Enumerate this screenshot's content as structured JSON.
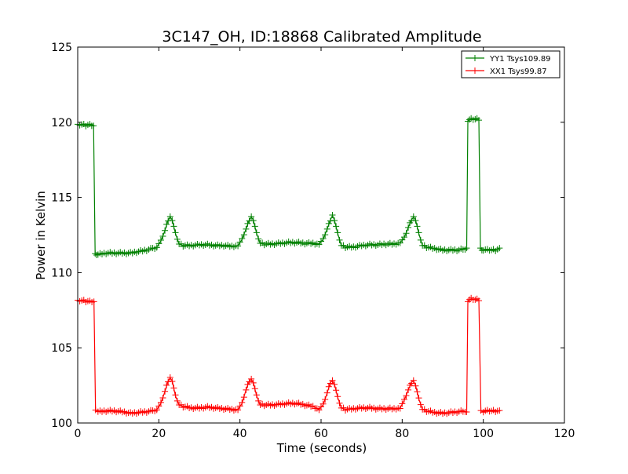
{
  "chart_data": {
    "type": "line",
    "title": "3C147_OH, ID:18868 Calibrated Amplitude",
    "xlabel": "Time (seconds)",
    "ylabel": "Power in Kelvin",
    "xlim": [
      0,
      120
    ],
    "ylim": [
      100,
      125
    ],
    "xticks": [
      0,
      20,
      40,
      60,
      80,
      100,
      120
    ],
    "yticks": [
      100,
      105,
      110,
      115,
      120,
      125
    ],
    "legend_position": "top-right",
    "marker": "+",
    "series": [
      {
        "name": "YY1 Tsys109.89",
        "color": "#008000",
        "x": [
          0,
          1,
          2,
          3,
          3.9,
          4.3,
          5,
          7,
          9,
          11,
          13,
          15,
          17,
          18.5,
          19.5,
          20.5,
          21.5,
          22.3,
          22.8,
          23.3,
          24.1,
          25,
          26,
          28,
          30,
          32,
          34,
          36,
          38,
          39.5,
          40.5,
          41.5,
          42.3,
          42.8,
          43.3,
          44.1,
          45,
          46,
          48,
          50,
          52,
          54,
          56,
          58,
          59.5,
          60.5,
          61.5,
          62.3,
          62.8,
          63.3,
          64.1,
          65,
          66,
          68,
          70,
          72,
          74,
          76,
          78,
          79.5,
          80.5,
          81.5,
          82.3,
          82.8,
          83.3,
          84.1,
          85,
          86,
          88,
          90,
          92,
          94,
          95.5,
          95.9,
          96.2,
          97,
          98,
          98.9,
          99.3,
          100,
          101,
          102,
          103,
          104
        ],
        "y": [
          119.8,
          119.85,
          119.8,
          119.85,
          119.8,
          111.2,
          111.2,
          111.3,
          111.3,
          111.3,
          111.3,
          111.4,
          111.5,
          111.6,
          111.7,
          112.1,
          112.8,
          113.5,
          113.7,
          113.5,
          112.6,
          111.9,
          111.8,
          111.8,
          111.85,
          111.85,
          111.8,
          111.8,
          111.75,
          111.8,
          112.2,
          112.9,
          113.5,
          113.7,
          113.5,
          112.6,
          111.95,
          111.9,
          111.9,
          111.95,
          112.0,
          112.0,
          111.95,
          111.95,
          111.9,
          112.2,
          112.9,
          113.5,
          113.8,
          113.5,
          112.6,
          111.8,
          111.7,
          111.7,
          111.8,
          111.85,
          111.85,
          111.9,
          111.9,
          112.0,
          112.3,
          113.0,
          113.5,
          113.7,
          113.5,
          112.6,
          111.8,
          111.7,
          111.6,
          111.5,
          111.5,
          111.5,
          111.6,
          111.6,
          120.1,
          120.2,
          120.2,
          120.2,
          111.6,
          111.5,
          111.5,
          111.5,
          111.5,
          111.6
        ]
      },
      {
        "name": "XX1 Tsys99.87",
        "color": "#ff0000",
        "x": [
          0,
          1,
          2,
          3,
          4.0,
          4.4,
          5,
          7,
          9,
          11,
          13,
          15,
          17,
          18.5,
          19.5,
          20.5,
          21.5,
          22.3,
          22.8,
          23.3,
          24.1,
          25,
          26,
          28,
          30,
          32,
          34,
          36,
          38,
          39.5,
          40.5,
          41.5,
          42.3,
          42.8,
          43.3,
          44.1,
          45,
          46,
          48,
          50,
          52,
          54,
          56,
          58,
          59.5,
          60.5,
          61.5,
          62.3,
          62.8,
          63.3,
          64.1,
          65,
          66,
          68,
          70,
          72,
          74,
          76,
          78,
          79.5,
          80.5,
          81.5,
          82.3,
          82.8,
          83.3,
          84.1,
          85,
          86,
          88,
          90,
          92,
          94,
          95.5,
          95.9,
          96.2,
          97,
          98,
          98.9,
          99.4,
          100,
          101,
          102,
          103,
          104
        ],
        "y": [
          108.1,
          108.15,
          108.1,
          108.1,
          108.1,
          100.8,
          100.75,
          100.8,
          100.8,
          100.75,
          100.65,
          100.7,
          100.75,
          100.8,
          100.9,
          101.3,
          102.1,
          102.8,
          103.0,
          102.8,
          101.8,
          101.2,
          101.1,
          101.0,
          101.0,
          101.05,
          101.0,
          100.95,
          100.9,
          100.9,
          101.3,
          102.2,
          102.8,
          102.9,
          102.7,
          101.8,
          101.2,
          101.2,
          101.2,
          101.25,
          101.3,
          101.3,
          101.2,
          101.1,
          100.9,
          101.2,
          102.0,
          102.7,
          102.8,
          102.6,
          101.7,
          101.0,
          100.9,
          100.95,
          101.0,
          101.0,
          100.95,
          100.95,
          100.95,
          101.0,
          101.5,
          102.2,
          102.7,
          102.8,
          102.5,
          101.6,
          100.9,
          100.8,
          100.7,
          100.65,
          100.7,
          100.75,
          100.8,
          100.7,
          108.1,
          108.25,
          108.2,
          108.2,
          100.8,
          100.75,
          100.8,
          100.8,
          100.8,
          100.8
        ]
      }
    ]
  }
}
